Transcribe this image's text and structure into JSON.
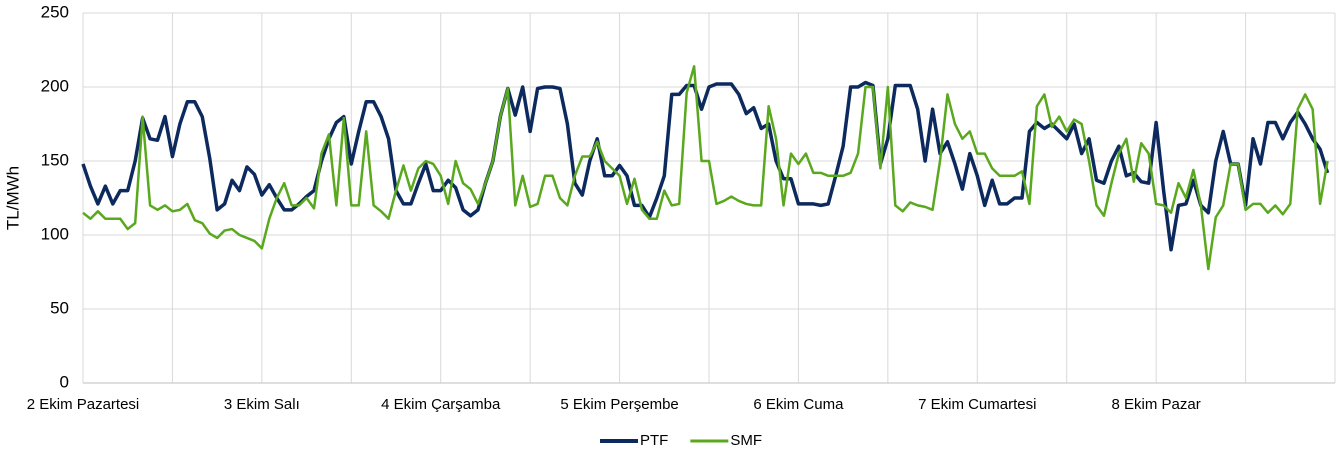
{
  "chart_data": {
    "type": "line",
    "y_label": "TL/MWh",
    "categories": [
      "2 Ekim Pazartesi",
      null,
      null,
      null,
      null,
      null,
      null,
      null,
      null,
      null,
      null,
      null,
      null,
      null,
      null,
      null,
      null,
      null,
      null,
      null,
      null,
      null,
      null,
      null,
      "3 Ekim Salı",
      null,
      null,
      null,
      null,
      null,
      null,
      null,
      null,
      null,
      null,
      null,
      null,
      null,
      null,
      null,
      null,
      null,
      null,
      null,
      null,
      null,
      null,
      null,
      "4 Ekim Çarşamba",
      null,
      null,
      null,
      null,
      null,
      null,
      null,
      null,
      null,
      null,
      null,
      null,
      null,
      null,
      null,
      null,
      null,
      null,
      null,
      null,
      null,
      null,
      null,
      "5 Ekim Perşembe",
      null,
      null,
      null,
      null,
      null,
      null,
      null,
      null,
      null,
      null,
      null,
      null,
      null,
      null,
      null,
      null,
      null,
      null,
      null,
      null,
      null,
      null,
      null,
      "6 Ekim Cuma",
      null,
      null,
      null,
      null,
      null,
      null,
      null,
      null,
      null,
      null,
      null,
      null,
      null,
      null,
      null,
      null,
      null,
      null,
      null,
      null,
      null,
      null,
      null,
      "7 Ekim Cumartesi",
      null,
      null,
      null,
      null,
      null,
      null,
      null,
      null,
      null,
      null,
      null,
      null,
      null,
      null,
      null,
      null,
      null,
      null,
      null,
      null,
      null,
      null,
      null,
      "8 Ekim Pazar",
      null,
      null,
      null,
      null,
      null,
      null,
      null,
      null,
      null,
      null,
      null,
      null,
      null,
      null,
      null,
      null,
      null,
      null,
      null,
      null,
      null,
      null,
      null
    ],
    "series": [
      {
        "name": "PTF",
        "color": "#0d2a5e",
        "values": [
          148,
          133,
          121,
          133,
          121,
          130,
          130,
          150,
          179,
          165,
          164,
          180,
          153,
          175,
          190,
          190,
          180,
          152,
          117,
          121,
          137,
          130,
          146,
          141,
          127,
          134,
          125,
          117,
          117,
          121,
          126,
          130,
          150,
          165,
          176,
          180,
          148,
          170,
          190,
          190,
          180,
          165,
          130,
          121,
          121,
          135,
          148,
          130,
          130,
          137,
          132,
          117,
          113,
          117,
          135,
          150,
          180,
          199,
          181,
          200,
          170,
          199,
          200,
          200,
          199,
          175,
          135,
          127,
          150,
          165,
          140,
          140,
          147,
          140,
          120,
          120,
          112,
          125,
          140,
          195,
          195,
          201,
          201,
          185,
          200,
          202,
          202,
          202,
          195,
          182,
          186,
          172,
          175,
          150,
          138,
          138,
          121,
          121,
          121,
          120,
          121,
          140,
          160,
          200,
          200,
          203,
          201,
          148,
          165,
          201,
          201,
          201,
          185,
          150,
          185,
          155,
          163,
          148,
          131,
          155,
          140,
          120,
          137,
          121,
          121,
          125,
          125,
          170,
          176,
          172,
          175,
          170,
          165,
          175,
          155,
          165,
          137,
          135,
          150,
          160,
          140,
          142,
          136,
          135,
          176,
          130,
          90,
          120,
          121,
          137,
          120,
          115,
          150,
          170,
          148,
          148,
          120,
          165,
          148,
          176,
          176,
          165,
          176,
          183,
          175,
          165,
          158,
          142
        ]
      },
      {
        "name": "SMF",
        "color": "#5aa81e",
        "values": [
          115,
          111,
          116,
          111,
          111,
          111,
          104,
          108,
          180,
          120,
          117,
          120,
          116,
          117,
          121,
          110,
          108,
          101,
          98,
          103,
          104,
          100,
          98,
          96,
          91,
          111,
          125,
          135,
          120,
          120,
          125,
          118,
          155,
          168,
          120,
          179,
          120,
          120,
          170,
          120,
          116,
          111,
          130,
          147,
          130,
          145,
          150,
          148,
          140,
          121,
          150,
          135,
          131,
          121,
          135,
          150,
          180,
          199,
          120,
          140,
          119,
          121,
          140,
          140,
          125,
          120,
          140,
          153,
          153,
          163,
          150,
          145,
          140,
          121,
          138,
          117,
          111,
          111,
          130,
          120,
          121,
          196,
          214,
          150,
          150,
          121,
          123,
          126,
          123,
          121,
          120,
          120,
          187,
          165,
          120,
          155,
          148,
          155,
          142,
          142,
          140,
          140,
          140,
          142,
          155,
          200,
          200,
          145,
          200,
          120,
          116,
          122,
          120,
          119,
          117,
          150,
          195,
          175,
          165,
          170,
          155,
          155,
          145,
          140,
          140,
          140,
          143,
          121,
          187,
          195,
          173,
          180,
          170,
          178,
          175,
          150,
          120,
          113,
          135,
          155,
          165,
          136,
          162,
          155,
          121,
          120,
          115,
          135,
          125,
          144,
          120,
          77,
          112,
          120,
          148,
          148,
          117,
          121,
          121,
          115,
          120,
          114,
          121,
          185,
          195,
          185,
          121,
          150
        ]
      }
    ],
    "ylim": [
      0,
      250
    ],
    "yticks": [
      0,
      50,
      100,
      150,
      200,
      250
    ],
    "grid": true,
    "legend": "bottom"
  }
}
